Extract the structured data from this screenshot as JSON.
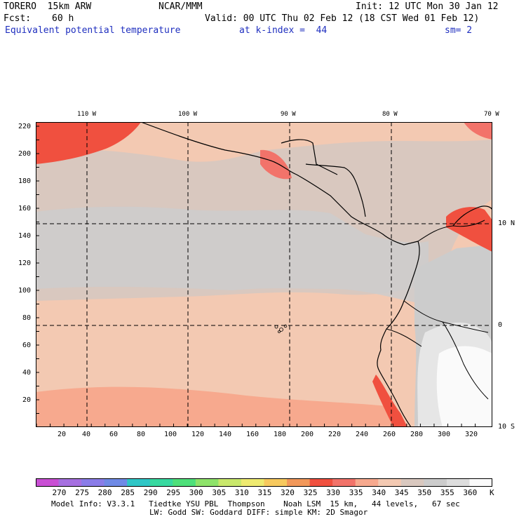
{
  "header": {
    "model": "TORERO  15km ARW",
    "org": "NCAR/MMM",
    "init": "Init: 12 UTC Mon 30 Jan 12",
    "fcst_label": "Fcst:",
    "fcst_value": "60 h",
    "valid": "Valid: 00 UTC Thu 02 Feb 12 (18 CST Wed 01 Feb 12)",
    "field": "Equivalent potential temperature",
    "level": "at k-index =  44",
    "smooth": "sm= 2"
  },
  "map": {
    "x_ticks": [
      "20",
      "40",
      "60",
      "80",
      "100",
      "120",
      "140",
      "160",
      "180",
      "200",
      "220",
      "240",
      "260",
      "280",
      "300",
      "320"
    ],
    "y_ticks": [
      "20",
      "40",
      "60",
      "80",
      "100",
      "120",
      "140",
      "160",
      "180",
      "200",
      "220"
    ],
    "lon_labels": [
      "110 W",
      "100 W",
      "90 W",
      "80 W",
      "70 W"
    ],
    "lat_labels": [
      "10 N",
      "0",
      "10 S"
    ]
  },
  "colorbar": {
    "labels": [
      "270",
      "275",
      "280",
      "285",
      "290",
      "295",
      "300",
      "305",
      "310",
      "315",
      "320",
      "325",
      "330",
      "335",
      "340",
      "345",
      "350",
      "355",
      "360"
    ],
    "unit": "K",
    "colors": [
      "#c94fd4",
      "#a670e0",
      "#8a7ce8",
      "#6f8ae6",
      "#2fc6c6",
      "#38d9a0",
      "#4ee07a",
      "#8ee36a",
      "#c9e86c",
      "#eeea70",
      "#f7c95e",
      "#f2985a",
      "#f0503f",
      "#f2736a",
      "#f7a98e",
      "#f3c9b2",
      "#d9c8bf",
      "#cccccc",
      "#dddddd",
      "#fafafa"
    ]
  },
  "footer": {
    "line1": "Model Info: V3.3.1   Tiedtke YSU PBL  Thompson    Noah LSM  15 km,   44 levels,   67 sec",
    "line2": "LW: Godd SW: Goddard DIFF: simple KM: 2D Smagor"
  }
}
